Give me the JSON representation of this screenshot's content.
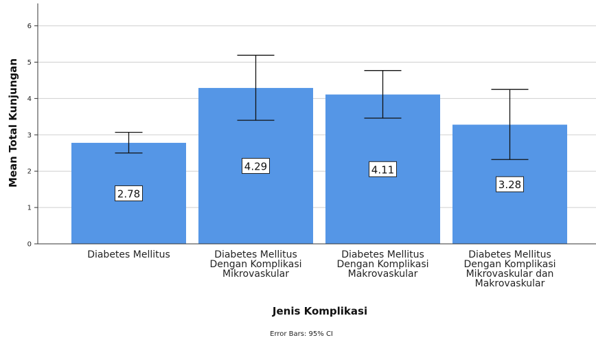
{
  "chart_data": {
    "type": "bar",
    "categories": [
      [
        "Diabetes Mellitus"
      ],
      [
        "Diabetes Mellitus",
        "Dengan Komplikasi",
        "Mikrovaskular"
      ],
      [
        "Diabetes Mellitus",
        "Dengan Komplikasi",
        "Makrovaskular"
      ],
      [
        "Diabetes Mellitus",
        "Dengan Komplikasi",
        "Mikrovaskular dan",
        "Makrovaskular"
      ]
    ],
    "values": [
      2.78,
      4.29,
      4.11,
      3.28
    ],
    "data_labels": [
      "2.78",
      "4.29",
      "4.11",
      "3.28"
    ],
    "error_bars": [
      {
        "low": 2.5,
        "high": 3.07
      },
      {
        "low": 3.4,
        "high": 5.19
      },
      {
        "low": 3.46,
        "high": 4.77
      },
      {
        "low": 2.32,
        "high": 4.25
      }
    ],
    "xlabel": "Jenis Komplikasi",
    "ylabel": "Mean Total Kunjungan",
    "ylim": [
      0,
      6.3
    ],
    "yticks": [
      0,
      1,
      2,
      3,
      4,
      5,
      6
    ],
    "note": "Error Bars: 95% CI",
    "grid": true,
    "bar_color": "#5596e6"
  }
}
